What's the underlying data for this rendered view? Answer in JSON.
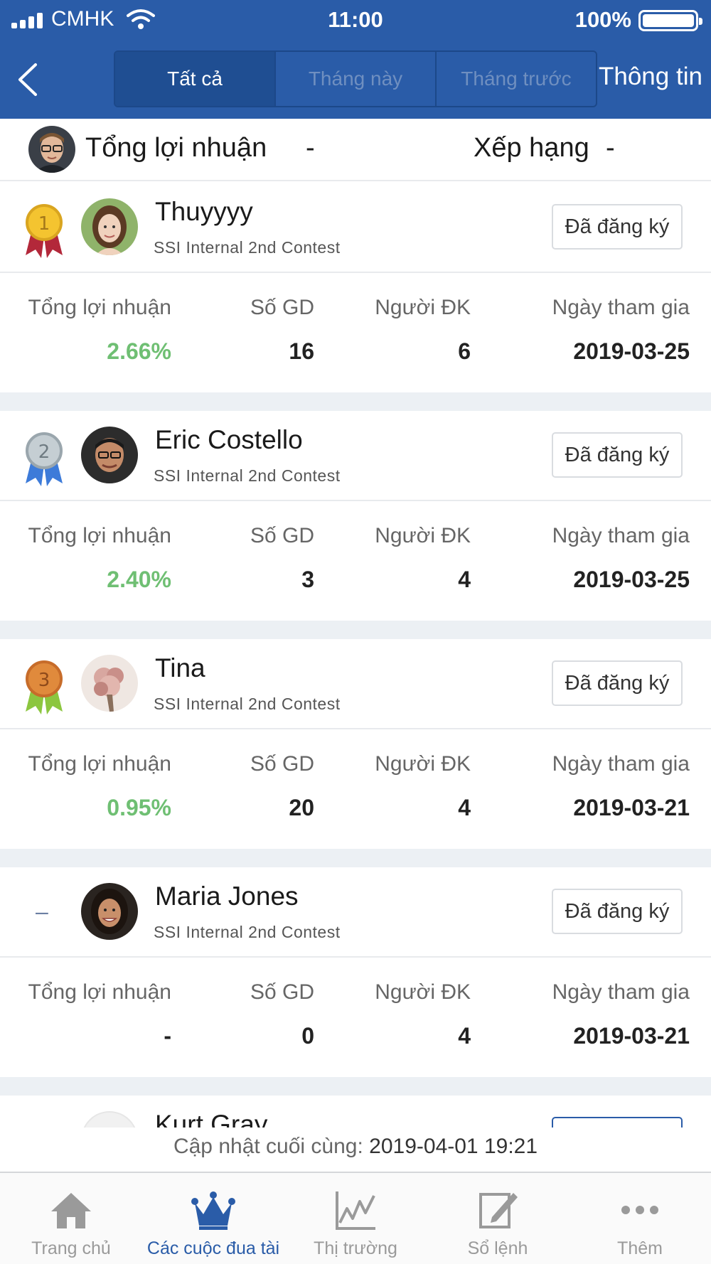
{
  "status_bar": {
    "carrier": "CMHK",
    "time": "11:00",
    "battery": "100%"
  },
  "nav": {
    "tabs": [
      {
        "label": "Tất cả",
        "active": true
      },
      {
        "label": "Tháng này",
        "active": false
      },
      {
        "label": "Tháng trước",
        "active": false
      }
    ],
    "info_label": "Thông tin"
  },
  "summary": {
    "profit_label": "Tổng lợi nhuận",
    "profit_value": "-",
    "rank_label": "Xếp hạng",
    "rank_value": "-"
  },
  "labels": {
    "profit": "Tổng lợi nhuận",
    "trades": "Số GD",
    "registrants": "Người ĐK",
    "join_date": "Ngày tham gia",
    "register_button": "Đã đăng ký"
  },
  "entries": [
    {
      "rank": "1",
      "medal_color": "#d9a520",
      "ribbon_color": "#b3283a",
      "name": "Thuyyyy",
      "contest": "SSI Internal 2nd Contest",
      "profit": "2.66%",
      "trades": "16",
      "registrants": "6",
      "join_date": "2019-03-25"
    },
    {
      "rank": "2",
      "medal_color": "#9aa6ad",
      "ribbon_color": "#3d7bd9",
      "name": "Eric Costello",
      "contest": "SSI Internal 2nd Contest",
      "profit": "2.40%",
      "trades": "3",
      "registrants": "4",
      "join_date": "2019-03-25"
    },
    {
      "rank": "3",
      "medal_color": "#c76c2a",
      "ribbon_color": "#8cc63f",
      "name": "Tina",
      "contest": "SSI Internal 2nd Contest",
      "profit": "0.95%",
      "trades": "20",
      "registrants": "4",
      "join_date": "2019-03-21"
    },
    {
      "rank": "–",
      "name": "Maria Jones",
      "contest": "SSI Internal 2nd Contest",
      "profit": "-",
      "trades": "0",
      "registrants": "4",
      "join_date": "2019-03-21"
    },
    {
      "name": "Kurt Gray"
    }
  ],
  "last_update": {
    "label": "Cập nhật cuối cùng:",
    "value": "2019-04-01 19:21"
  },
  "tabbar": [
    {
      "label": "Trang chủ",
      "icon": "home-icon",
      "active": false
    },
    {
      "label": "Các cuộc đua tài",
      "icon": "crown-icon",
      "active": true
    },
    {
      "label": "Thị trường",
      "icon": "chart-icon",
      "active": false
    },
    {
      "label": "Sổ lệnh",
      "icon": "order-book-icon",
      "active": false
    },
    {
      "label": "Thêm",
      "icon": "more-icon",
      "active": false
    }
  ],
  "colors": {
    "brand": "#2a5ca8",
    "profit_positive": "#6fbf73",
    "active_tab": "#2a5ca8"
  }
}
